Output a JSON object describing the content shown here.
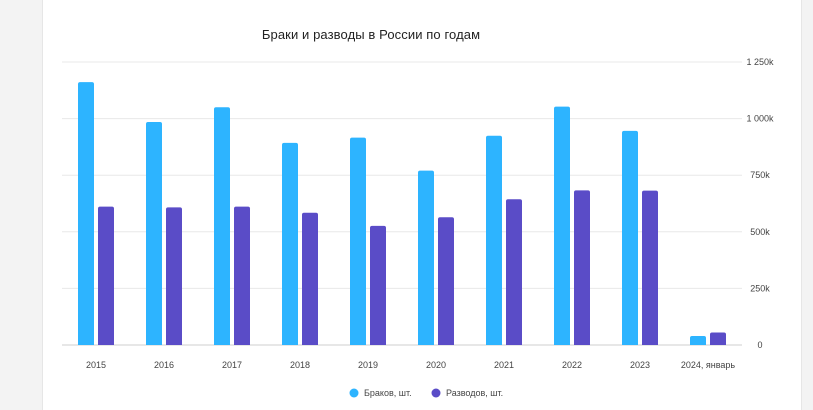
{
  "chart_data": {
    "type": "bar",
    "title": "Браки и разводы в России по годам",
    "categories": [
      "2015",
      "2016",
      "2017",
      "2018",
      "2019",
      "2020",
      "2021",
      "2022",
      "2023",
      "2024, январь"
    ],
    "series": [
      {
        "name": "Браков, шт.",
        "color": "#2db4ff",
        "values": [
          1161,
          985,
          1050,
          893,
          916,
          770,
          924,
          1053,
          946,
          40
        ]
      },
      {
        "name": "Разводов, шт.",
        "color": "#5a4cc7",
        "values": [
          611,
          608,
          611,
          584,
          526,
          564,
          644,
          683,
          682,
          55
        ]
      }
    ],
    "ylim": [
      0,
      1250
    ],
    "yticks": [
      0,
      250,
      500,
      750,
      1000,
      1250
    ],
    "ytick_labels": [
      "0",
      "250k",
      "500k",
      "750k",
      "1 000k",
      "1 250k"
    ],
    "y_axis_position": "right",
    "grid": true,
    "legend_position": "bottom-center"
  }
}
